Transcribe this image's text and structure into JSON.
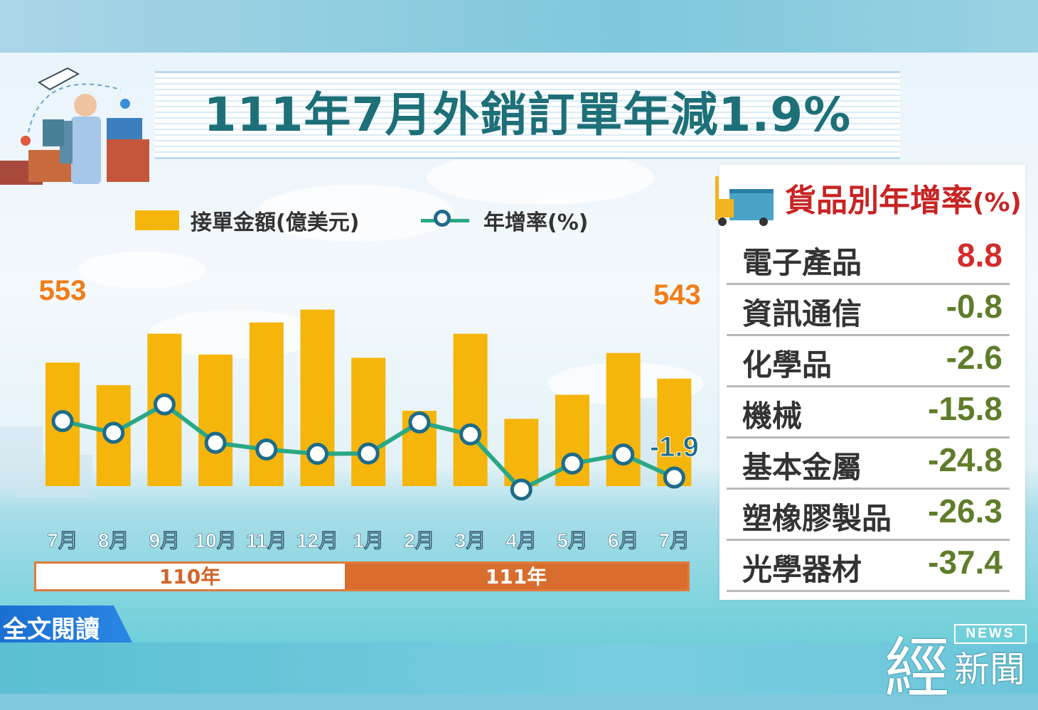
{
  "title": "111年7月外銷訂單年減1.9%",
  "legend": {
    "bar_label": "接單金額(億美元)",
    "line_label": "年增率(%)"
  },
  "colors": {
    "bar": "#f5b50a",
    "line": "#2aa886",
    "marker_stroke": "#1e6b8a",
    "data_label": "#f07d18",
    "title": "#1d6f78"
  },
  "chart_data": {
    "type": "bar",
    "categories": [
      "7月",
      "8月",
      "9月",
      "10月",
      "11月",
      "12月",
      "1月",
      "2月",
      "3月",
      "4月",
      "5月",
      "6月",
      "7月"
    ],
    "series": [
      {
        "name": "接單金額(億美元)",
        "type": "bar",
        "values": [
          553,
          539,
          571,
          558,
          578,
          586,
          556,
          523,
          571,
          518,
          533,
          559,
          543
        ]
      },
      {
        "name": "年增率(%)",
        "type": "line",
        "values": [
          15.0,
          11.5,
          20.0,
          8.5,
          6.5,
          5.2,
          5.3,
          14.6,
          11.0,
          -5.5,
          2.3,
          5.0,
          -1.9
        ]
      }
    ],
    "data_labels": {
      "first_bar": "553",
      "last_bar": "543",
      "last_point": "-1.9"
    },
    "year_groups": [
      {
        "label": "110年",
        "span": 6
      },
      {
        "label": "111年",
        "span": 7
      }
    ]
  },
  "table": {
    "title": "貨品別年增率",
    "unit": "(%)",
    "rows": [
      {
        "name": "電子產品",
        "value": "8.8"
      },
      {
        "name": "資訊通信",
        "value": "-0.8"
      },
      {
        "name": "化學品",
        "value": "-2.6"
      },
      {
        "name": "機械",
        "value": "-15.8"
      },
      {
        "name": "基本金屬",
        "value": "-24.8"
      },
      {
        "name": "塑橡膠製品",
        "value": "-26.3"
      },
      {
        "name": "光學器材",
        "value": "-37.4"
      }
    ]
  },
  "read_more": "全文閱讀",
  "logo": {
    "main": "經",
    "news": "NEWS",
    "sub": "新聞"
  }
}
